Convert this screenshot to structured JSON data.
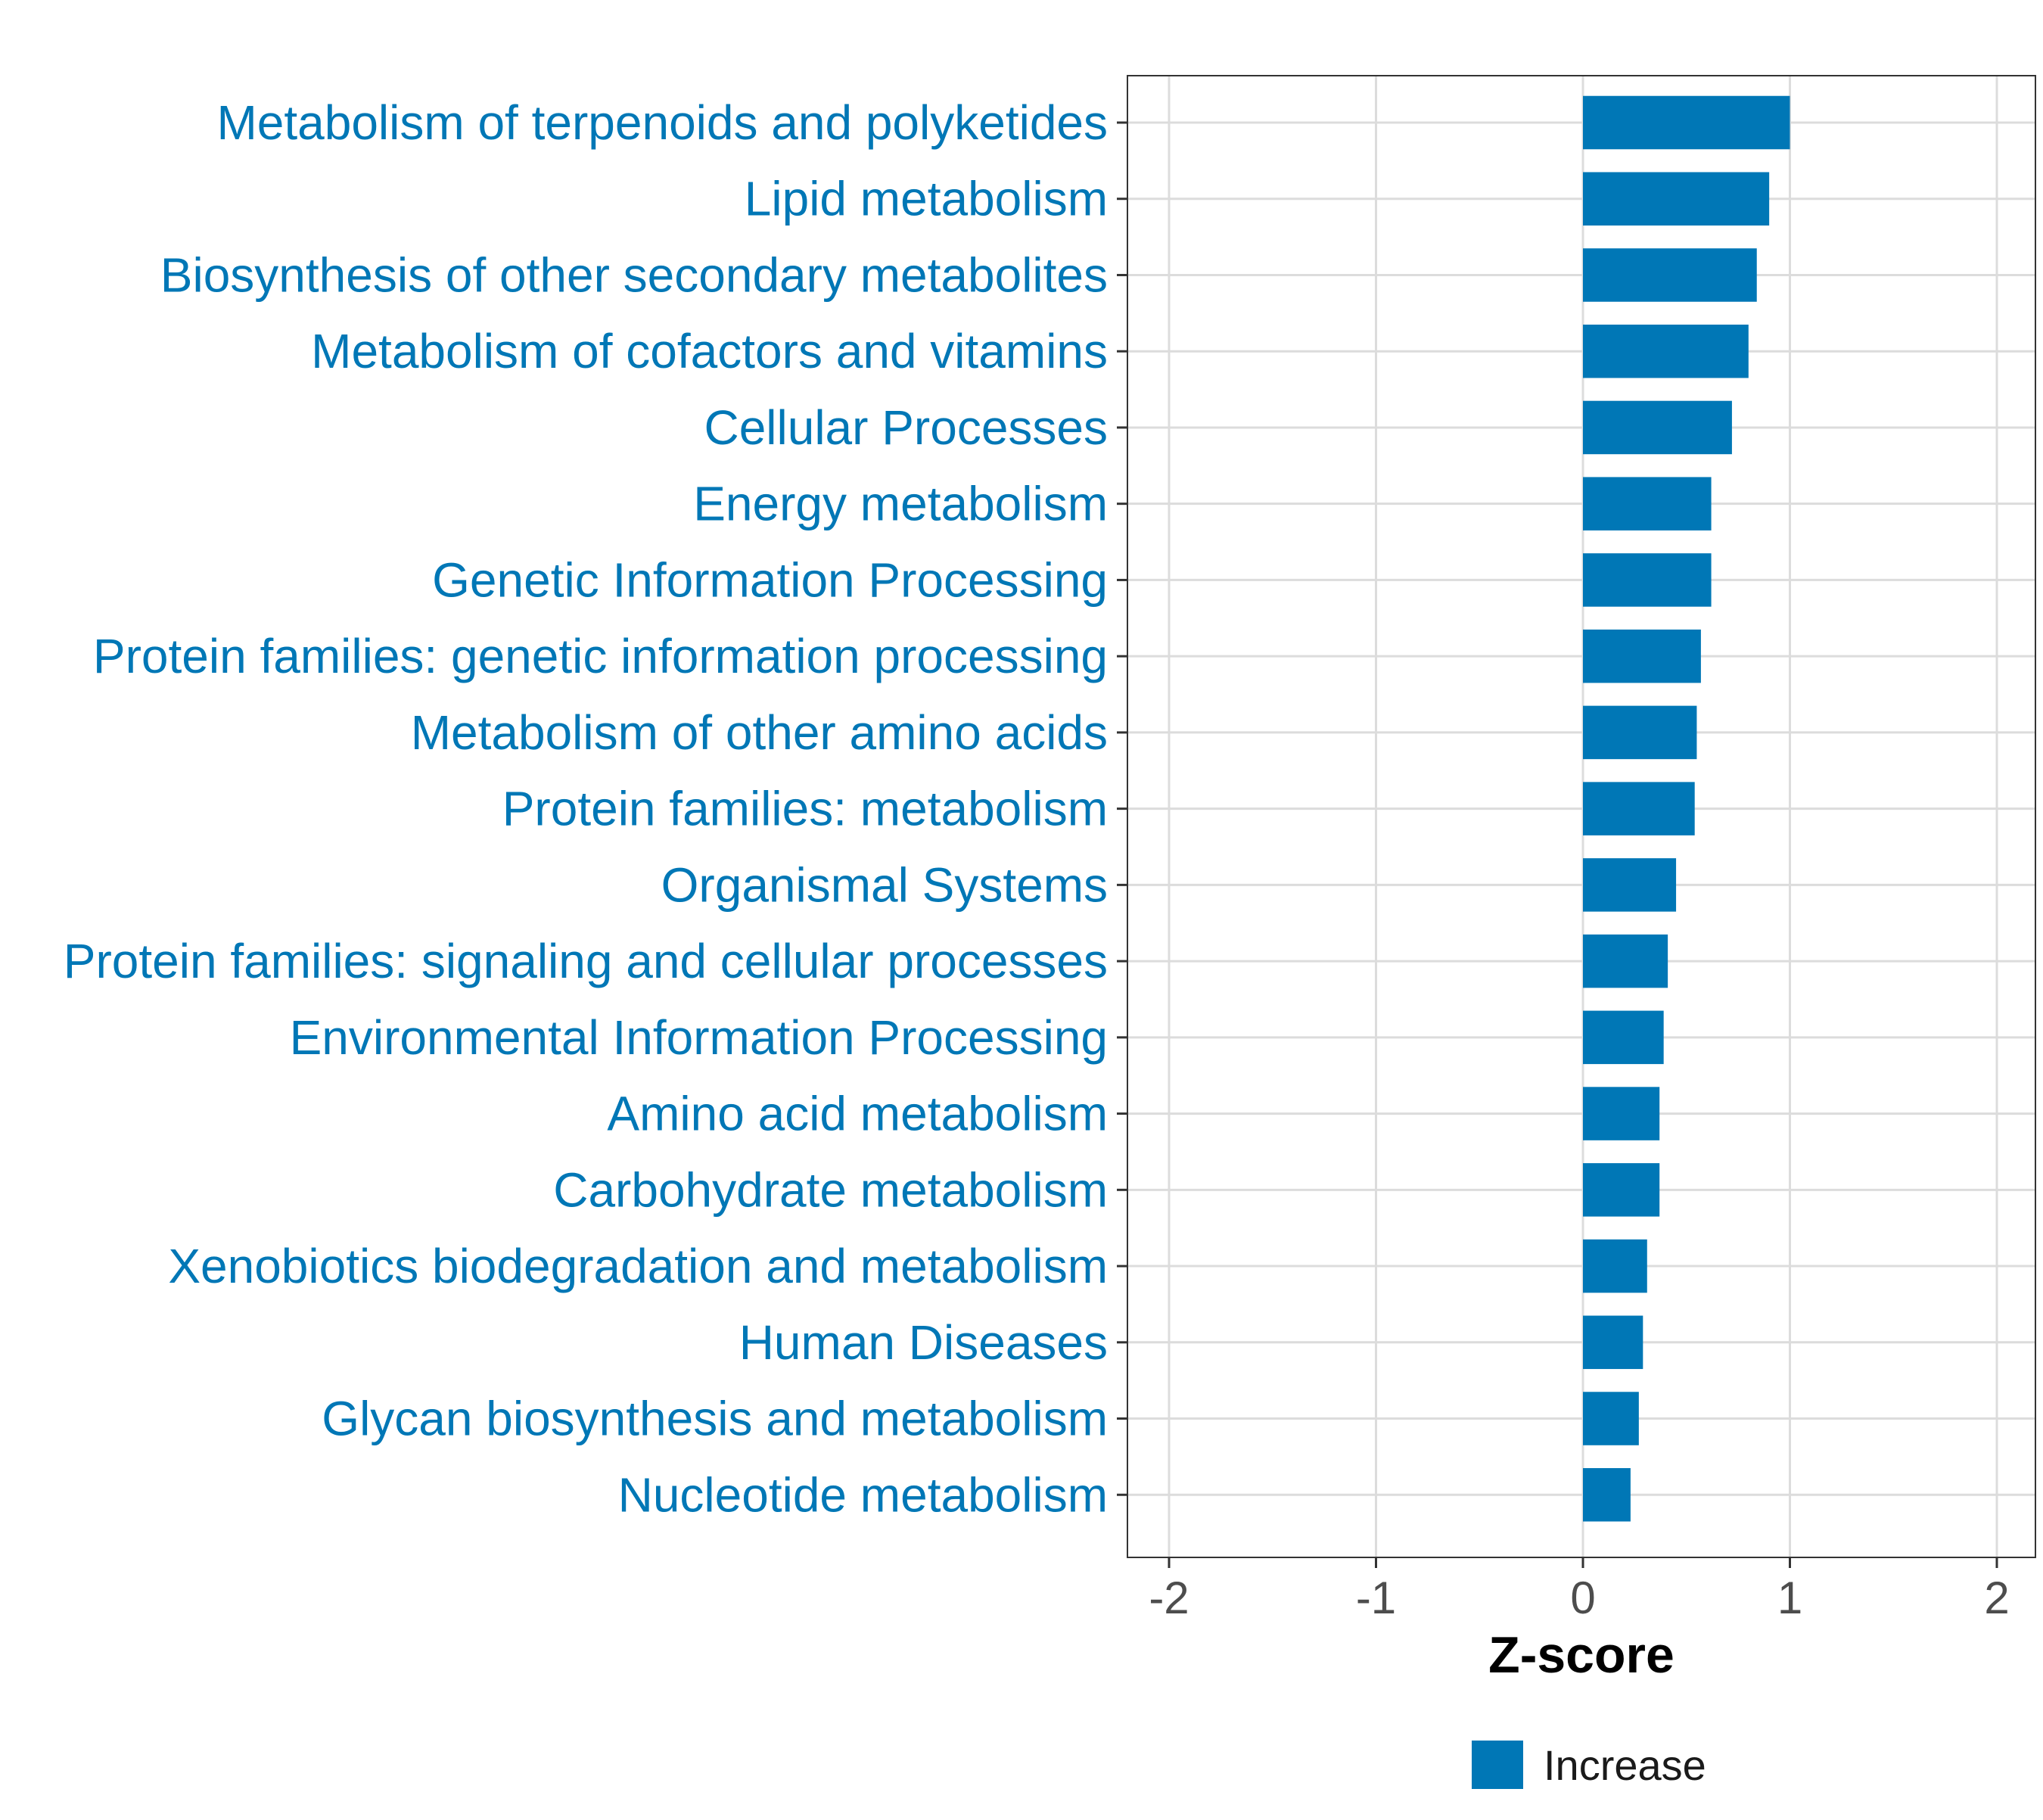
{
  "chart_data": {
    "type": "bar",
    "orientation": "horizontal",
    "categories": [
      "Metabolism of terpenoids and polyketides",
      "Lipid metabolism",
      "Biosynthesis of other secondary metabolites",
      "Metabolism of cofactors and vitamins",
      "Cellular Processes",
      "Energy metabolism",
      "Genetic Information Processing",
      "Protein families: genetic information processing",
      "Metabolism of other amino acids",
      "Protein families: metabolism",
      "Organismal Systems",
      "Protein families: signaling and cellular processes",
      "Environmental Information Processing",
      "Amino acid metabolism",
      "Carbohydrate metabolism",
      "Xenobiotics biodegradation and metabolism",
      "Human Diseases",
      "Glycan biosynthesis and metabolism",
      "Nucleotide metabolism"
    ],
    "values": [
      1.0,
      0.9,
      0.84,
      0.8,
      0.72,
      0.62,
      0.62,
      0.57,
      0.55,
      0.54,
      0.45,
      0.41,
      0.39,
      0.37,
      0.37,
      0.31,
      0.29,
      0.27,
      0.23
    ],
    "series": [
      {
        "name": "Increase",
        "color": "#0077B6"
      }
    ],
    "xlabel": "Z-score",
    "ylabel": "",
    "xlim": [
      -2.2,
      2.2
    ],
    "xticks": [
      -2,
      -1,
      0,
      1,
      2
    ],
    "xtick_labels": [
      "-2",
      "-1",
      "0",
      "1",
      "2"
    ],
    "grid": true,
    "legend_position": "bottom",
    "label_color": "#0077B6",
    "bar_color": "#0077B6"
  }
}
